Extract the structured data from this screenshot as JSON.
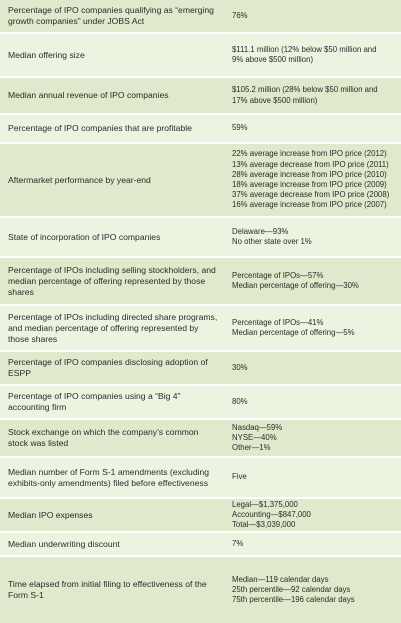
{
  "table": {
    "rows": [
      {
        "label": "Percentage of IPO companies qualifying as “emerging growth companies” under JOBS Act",
        "value": [
          "76%"
        ]
      },
      {
        "label": "Median offering size",
        "value": [
          "$111.1 million (12% below $50 million and",
          "9% above $500 million)"
        ]
      },
      {
        "label": "Median annual revenue of IPO companies",
        "value": [
          "$105.2 million (28% below $50 million and",
          "17% above $500 million)"
        ]
      },
      {
        "label": "Percentage of IPO companies that are profitable",
        "value": [
          "59%"
        ]
      },
      {
        "label": "Aftermarket performance by year-end",
        "value": [
          "22% average increase from IPO price (2012)",
          "13% average decrease from IPO price (2011)",
          "28% average increase from IPO price (2010)",
          "18% average increase from IPO price (2009)",
          "37% average decrease from IPO price (2008)",
          "16% average increase from IPO price (2007)"
        ]
      },
      {
        "label": "State of incorporation of IPO companies",
        "value": [
          "Delaware—93%",
          "No other state over 1%"
        ]
      },
      {
        "label": "Percentage of IPOs including selling stockholders, and median percentage of offering represented by those shares",
        "value": [
          "Percentage of IPOs—57%",
          "Median percentage of offering—30%"
        ]
      },
      {
        "label": "Percentage of IPOs including directed share programs, and median percentage of offering represented by those shares",
        "value": [
          "Percentage of IPOs—41%",
          "Median percentage of offering—5%"
        ]
      },
      {
        "label": "Percentage of IPO companies disclosing adoption of ESPP",
        "value": [
          "30%"
        ]
      },
      {
        "label": "Percentage of IPO companies using a “Big 4” accounting firm",
        "value": [
          "80%"
        ]
      },
      {
        "label": "Stock exchange on which the company’s common stock was listed",
        "value": [
          "Nasdaq—59%",
          "NYSE—40%",
          "Other—1%"
        ]
      },
      {
        "label": "Median number of Form S-1 amendments (excluding exhibits-only amendments) filed before effectiveness",
        "value": [
          "Five"
        ]
      },
      {
        "label": "Median IPO expenses",
        "value": [
          "Legal—$1,375,000",
          "Accounting—$847,000",
          "Total—$3,039,000"
        ]
      },
      {
        "label": "Median underwriting discount",
        "value": [
          "7%"
        ]
      },
      {
        "label": "Time elapsed from initial filing to effectiveness of the Form S-1",
        "value": [
          "Median—119 calendar days",
          "25th percentile—92 calendar days",
          "75th percentile—196 calendar days"
        ]
      }
    ]
  }
}
